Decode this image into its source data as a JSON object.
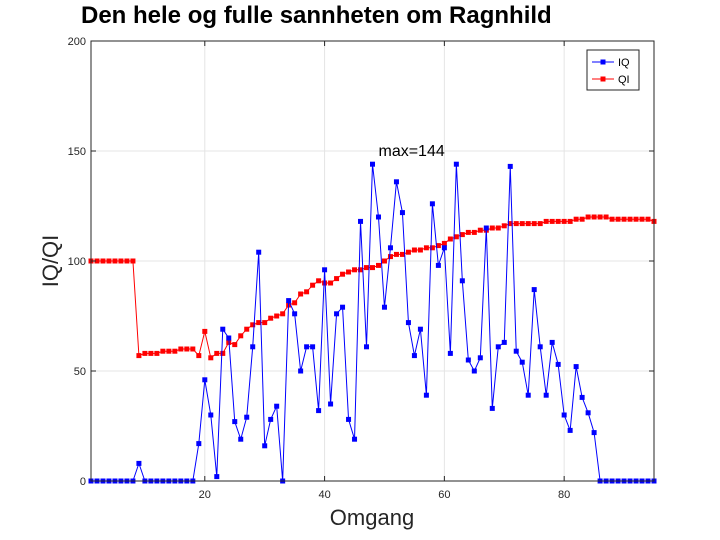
{
  "chart_data": {
    "type": "line",
    "title": "Den hele og fulle sannheten om Ragnhild",
    "xlabel": "Omgang",
    "ylabel": "IQ/QI",
    "xlim": [
      1,
      95
    ],
    "ylim": [
      0,
      200
    ],
    "xticks": [
      20,
      40,
      60,
      80
    ],
    "yticks": [
      0,
      50,
      100,
      150,
      200
    ],
    "grid": true,
    "legend_position": "top-right",
    "annotation": {
      "text": "max=144",
      "x": 49,
      "y": 149
    },
    "x": [
      1,
      2,
      3,
      4,
      5,
      6,
      7,
      8,
      9,
      10,
      11,
      12,
      13,
      14,
      15,
      16,
      17,
      18,
      19,
      20,
      21,
      22,
      23,
      24,
      25,
      26,
      27,
      28,
      29,
      30,
      31,
      32,
      33,
      34,
      35,
      36,
      37,
      38,
      39,
      40,
      41,
      42,
      43,
      44,
      45,
      46,
      47,
      48,
      49,
      50,
      51,
      52,
      53,
      54,
      55,
      56,
      57,
      58,
      59,
      60,
      61,
      62,
      63,
      64,
      65,
      66,
      67,
      68,
      69,
      70,
      71,
      72,
      73,
      74,
      75,
      76,
      77,
      78,
      79,
      80,
      81,
      82,
      83,
      84,
      85,
      86,
      87,
      88,
      89,
      90,
      91,
      92,
      93,
      94,
      95
    ],
    "series": [
      {
        "name": "IQ",
        "color": "#0000ff",
        "marker": "square",
        "values": [
          0,
          0,
          0,
          0,
          0,
          0,
          0,
          0,
          8,
          0,
          0,
          0,
          0,
          0,
          0,
          0,
          0,
          0,
          17,
          46,
          30,
          2,
          69,
          65,
          27,
          19,
          29,
          61,
          104,
          16,
          28,
          34,
          0,
          82,
          76,
          50,
          61,
          61,
          32,
          96,
          35,
          76,
          79,
          28,
          19,
          118,
          61,
          144,
          120,
          79,
          106,
          136,
          122,
          72,
          57,
          69,
          39,
          126,
          98,
          106,
          58,
          144,
          91,
          55,
          50,
          56,
          115,
          33,
          61,
          63,
          143,
          59,
          54,
          39,
          87,
          61,
          39,
          63,
          53,
          30,
          23,
          52,
          38,
          31,
          22,
          0,
          0,
          0,
          0,
          0,
          0,
          0,
          0,
          0,
          0
        ]
      },
      {
        "name": "QI",
        "color": "#ff0000",
        "marker": "square",
        "values": [
          100,
          100,
          100,
          100,
          100,
          100,
          100,
          100,
          57,
          58,
          58,
          58,
          59,
          59,
          59,
          60,
          60,
          60,
          57,
          68,
          56,
          58,
          58,
          63,
          62,
          66,
          69,
          71,
          72,
          72,
          74,
          75,
          76,
          80,
          81,
          85,
          86,
          89,
          91,
          90,
          90,
          92,
          94,
          95,
          96,
          96,
          97,
          97,
          98,
          100,
          102,
          103,
          103,
          104,
          105,
          105,
          106,
          106,
          107,
          108,
          110,
          111,
          112,
          113,
          113,
          114,
          114,
          115,
          115,
          116,
          117,
          117,
          117,
          117,
          117,
          117,
          118,
          118,
          118,
          118,
          118,
          119,
          119,
          120,
          120,
          120,
          120,
          119,
          119,
          119,
          119,
          119,
          119,
          119,
          118
        ]
      }
    ]
  }
}
